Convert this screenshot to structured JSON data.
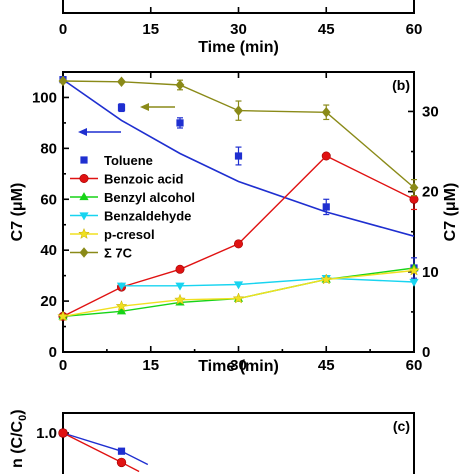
{
  "chart_data": [
    {
      "panel": "a",
      "type": "scatter",
      "xlabel": "Time (min)",
      "x_ticks": [
        "0",
        "15",
        "30",
        "45",
        "60"
      ],
      "xlim": [
        0,
        60
      ]
    },
    {
      "panel": "b",
      "panel_label": "(b)",
      "type": "line",
      "xlabel": "Time (min)",
      "ylabel": "C7 (μM)",
      "ylabel_right": "C7 (μM)",
      "xlim": [
        0,
        60
      ],
      "ylim": [
        0,
        110
      ],
      "ylim_right": [
        0,
        34.92
      ],
      "x_ticks": [
        "0",
        "15",
        "30",
        "45",
        "60"
      ],
      "y_ticks": [
        "0",
        "20",
        "40",
        "60",
        "80",
        "100"
      ],
      "y_ticks_right": [
        "0",
        "10",
        "20",
        "30"
      ],
      "legend_position": "left",
      "arrows": [
        {
          "from_series": "Toluene",
          "points_to": "left-axis"
        },
        {
          "from_series": "Σ 7C",
          "points_to": "left-axis"
        }
      ],
      "series": [
        {
          "name": "Toluene",
          "axis": "left",
          "color": "#1f2fd0",
          "marker": "square",
          "line": "fit",
          "x": [
            0,
            10,
            20,
            30,
            45,
            60
          ],
          "y": [
            107,
            96,
            90,
            77,
            57,
            33
          ],
          "err": [
            0,
            1.5,
            2,
            3.5,
            3,
            4
          ],
          "fit": {
            "x": [
              0,
              10,
              20,
              30,
              45,
              60
            ],
            "y": [
              107,
              91,
              78,
              67,
              55,
              45.5
            ]
          }
        },
        {
          "name": "Benzoic acid",
          "axis": "left",
          "color": "#e01212",
          "marker": "circle",
          "line": "connect",
          "x": [
            0,
            10,
            20,
            30,
            45,
            60
          ],
          "y": [
            14,
            25.5,
            32.5,
            42.5,
            77,
            60
          ],
          "err": [
            0,
            0,
            0,
            0,
            0,
            4
          ]
        },
        {
          "name": "Benzyl alcohol",
          "axis": "left",
          "color": "#17d417",
          "marker": "triangle-up",
          "line": "connect",
          "x": [
            0,
            10,
            20,
            30,
            45,
            60
          ],
          "y": [
            14,
            16,
            19.5,
            21,
            28.5,
            33
          ],
          "err": [
            0,
            0,
            0,
            0,
            0,
            0
          ]
        },
        {
          "name": "Benzaldehyde",
          "axis": "left",
          "color": "#18d4f0",
          "marker": "triangle-down",
          "line": "connect",
          "x": [
            10,
            20,
            30,
            45,
            60
          ],
          "y": [
            26,
            26,
            26.5,
            29,
            27.5
          ],
          "err": [
            0,
            0,
            0,
            0,
            0
          ]
        },
        {
          "name": "p-cresol",
          "axis": "left",
          "color": "#f0e020",
          "marker": "star",
          "line": "connect",
          "x": [
            0,
            10,
            20,
            30,
            45,
            60
          ],
          "y": [
            14,
            18,
            20.5,
            21,
            28.5,
            32
          ],
          "err": [
            0,
            0,
            0,
            0,
            0,
            0
          ]
        },
        {
          "name": "Σ 7C",
          "axis": "right",
          "color": "#8a8a18",
          "marker": "diamond",
          "line": "connect",
          "x": [
            0,
            10,
            20,
            30,
            45,
            60
          ],
          "y": [
            33.8,
            33.7,
            33.3,
            30.1,
            29.9,
            20.5
          ],
          "err": [
            0,
            0,
            0.6,
            1.2,
            0.9,
            1.0
          ]
        }
      ]
    },
    {
      "panel": "c",
      "panel_label": "(c)",
      "type": "line",
      "ylabel": "n (C/C",
      "ylabel_sub": "0",
      "ylabel_close": ")",
      "y_ticks": [
        "1.0"
      ],
      "series": [
        {
          "name": "",
          "color": "#1f2fd0",
          "marker": "square",
          "x": [
            0,
            10,
            14.5
          ],
          "y": [
            1.0,
            0.974,
            0.955
          ]
        },
        {
          "name": "",
          "color": "#e01212",
          "marker": "circle",
          "x": [
            0,
            10,
            13
          ],
          "y": [
            1.0,
            0.958,
            0.945
          ]
        }
      ]
    }
  ]
}
